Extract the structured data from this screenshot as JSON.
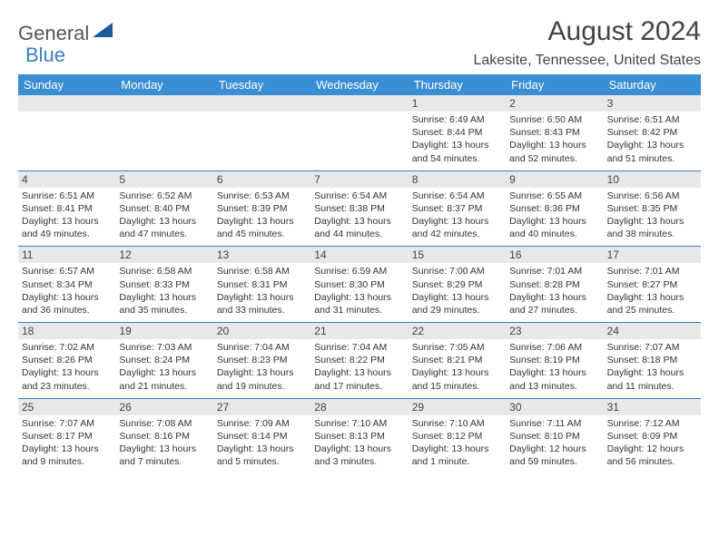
{
  "logo": {
    "text1": "General",
    "text2": "Blue"
  },
  "title": "August 2024",
  "location": "Lakesite, Tennessee, United States",
  "colors": {
    "header_bar": "#3a8fd4",
    "daynum_bg": "#e8e8e8",
    "week_border": "#3a7fc4",
    "logo_triangle": "#1e5a9e"
  },
  "weekdays": [
    "Sunday",
    "Monday",
    "Tuesday",
    "Wednesday",
    "Thursday",
    "Friday",
    "Saturday"
  ],
  "weeks": [
    [
      null,
      null,
      null,
      null,
      {
        "n": "1",
        "sr": "6:49 AM",
        "ss": "8:44 PM",
        "d1": "Daylight: 13 hours",
        "d2": "and 54 minutes."
      },
      {
        "n": "2",
        "sr": "6:50 AM",
        "ss": "8:43 PM",
        "d1": "Daylight: 13 hours",
        "d2": "and 52 minutes."
      },
      {
        "n": "3",
        "sr": "6:51 AM",
        "ss": "8:42 PM",
        "d1": "Daylight: 13 hours",
        "d2": "and 51 minutes."
      }
    ],
    [
      {
        "n": "4",
        "sr": "6:51 AM",
        "ss": "8:41 PM",
        "d1": "Daylight: 13 hours",
        "d2": "and 49 minutes."
      },
      {
        "n": "5",
        "sr": "6:52 AM",
        "ss": "8:40 PM",
        "d1": "Daylight: 13 hours",
        "d2": "and 47 minutes."
      },
      {
        "n": "6",
        "sr": "6:53 AM",
        "ss": "8:39 PM",
        "d1": "Daylight: 13 hours",
        "d2": "and 45 minutes."
      },
      {
        "n": "7",
        "sr": "6:54 AM",
        "ss": "8:38 PM",
        "d1": "Daylight: 13 hours",
        "d2": "and 44 minutes."
      },
      {
        "n": "8",
        "sr": "6:54 AM",
        "ss": "8:37 PM",
        "d1": "Daylight: 13 hours",
        "d2": "and 42 minutes."
      },
      {
        "n": "9",
        "sr": "6:55 AM",
        "ss": "8:36 PM",
        "d1": "Daylight: 13 hours",
        "d2": "and 40 minutes."
      },
      {
        "n": "10",
        "sr": "6:56 AM",
        "ss": "8:35 PM",
        "d1": "Daylight: 13 hours",
        "d2": "and 38 minutes."
      }
    ],
    [
      {
        "n": "11",
        "sr": "6:57 AM",
        "ss": "8:34 PM",
        "d1": "Daylight: 13 hours",
        "d2": "and 36 minutes."
      },
      {
        "n": "12",
        "sr": "6:58 AM",
        "ss": "8:33 PM",
        "d1": "Daylight: 13 hours",
        "d2": "and 35 minutes."
      },
      {
        "n": "13",
        "sr": "6:58 AM",
        "ss": "8:31 PM",
        "d1": "Daylight: 13 hours",
        "d2": "and 33 minutes."
      },
      {
        "n": "14",
        "sr": "6:59 AM",
        "ss": "8:30 PM",
        "d1": "Daylight: 13 hours",
        "d2": "and 31 minutes."
      },
      {
        "n": "15",
        "sr": "7:00 AM",
        "ss": "8:29 PM",
        "d1": "Daylight: 13 hours",
        "d2": "and 29 minutes."
      },
      {
        "n": "16",
        "sr": "7:01 AM",
        "ss": "8:28 PM",
        "d1": "Daylight: 13 hours",
        "d2": "and 27 minutes."
      },
      {
        "n": "17",
        "sr": "7:01 AM",
        "ss": "8:27 PM",
        "d1": "Daylight: 13 hours",
        "d2": "and 25 minutes."
      }
    ],
    [
      {
        "n": "18",
        "sr": "7:02 AM",
        "ss": "8:26 PM",
        "d1": "Daylight: 13 hours",
        "d2": "and 23 minutes."
      },
      {
        "n": "19",
        "sr": "7:03 AM",
        "ss": "8:24 PM",
        "d1": "Daylight: 13 hours",
        "d2": "and 21 minutes."
      },
      {
        "n": "20",
        "sr": "7:04 AM",
        "ss": "8:23 PM",
        "d1": "Daylight: 13 hours",
        "d2": "and 19 minutes."
      },
      {
        "n": "21",
        "sr": "7:04 AM",
        "ss": "8:22 PM",
        "d1": "Daylight: 13 hours",
        "d2": "and 17 minutes."
      },
      {
        "n": "22",
        "sr": "7:05 AM",
        "ss": "8:21 PM",
        "d1": "Daylight: 13 hours",
        "d2": "and 15 minutes."
      },
      {
        "n": "23",
        "sr": "7:06 AM",
        "ss": "8:19 PM",
        "d1": "Daylight: 13 hours",
        "d2": "and 13 minutes."
      },
      {
        "n": "24",
        "sr": "7:07 AM",
        "ss": "8:18 PM",
        "d1": "Daylight: 13 hours",
        "d2": "and 11 minutes."
      }
    ],
    [
      {
        "n": "25",
        "sr": "7:07 AM",
        "ss": "8:17 PM",
        "d1": "Daylight: 13 hours",
        "d2": "and 9 minutes."
      },
      {
        "n": "26",
        "sr": "7:08 AM",
        "ss": "8:16 PM",
        "d1": "Daylight: 13 hours",
        "d2": "and 7 minutes."
      },
      {
        "n": "27",
        "sr": "7:09 AM",
        "ss": "8:14 PM",
        "d1": "Daylight: 13 hours",
        "d2": "and 5 minutes."
      },
      {
        "n": "28",
        "sr": "7:10 AM",
        "ss": "8:13 PM",
        "d1": "Daylight: 13 hours",
        "d2": "and 3 minutes."
      },
      {
        "n": "29",
        "sr": "7:10 AM",
        "ss": "8:12 PM",
        "d1": "Daylight: 13 hours",
        "d2": "and 1 minute."
      },
      {
        "n": "30",
        "sr": "7:11 AM",
        "ss": "8:10 PM",
        "d1": "Daylight: 12 hours",
        "d2": "and 59 minutes."
      },
      {
        "n": "31",
        "sr": "7:12 AM",
        "ss": "8:09 PM",
        "d1": "Daylight: 12 hours",
        "d2": "and 56 minutes."
      }
    ]
  ]
}
